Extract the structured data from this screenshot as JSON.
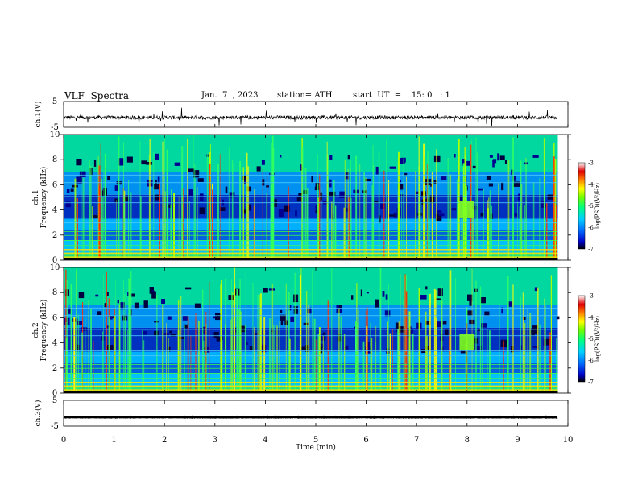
{
  "header": {
    "title": "VLF  Spectra",
    "date": "Jan.  7  , 2023",
    "station": "station= ATH",
    "start": "start  UT  =    15: 0   : 1"
  },
  "chart_data": [
    {
      "type": "line",
      "name": "ch1-waveform",
      "ylabel": "ch.1(V)",
      "yticks": [
        "5",
        "-5"
      ],
      "ylim": [
        -5,
        5
      ],
      "xlim": [
        0,
        10
      ],
      "x_extent": [
        0,
        9.8
      ],
      "baseline": -1.2,
      "color": "#000000"
    },
    {
      "type": "heatmap",
      "name": "ch1-spectrogram",
      "ylabel_channel": "ch.1",
      "ylabel": "Frequency  (kHz)",
      "yticks": [
        "0",
        "2",
        "4",
        "6",
        "8",
        "10"
      ],
      "ylim": [
        0,
        10
      ],
      "xlim": [
        0,
        10
      ],
      "x_extent": [
        0,
        9.8
      ],
      "colorbar": {
        "label": "log(PSD)(V²/Hz)",
        "ticks": [
          "-3",
          "-4",
          "-5",
          "-6",
          "-7"
        ],
        "range": [
          -7,
          -3
        ],
        "colors": [
          "#000000",
          "#0000c8",
          "#0070ff",
          "#00d0ff",
          "#00ff80",
          "#70ff00",
          "#ffff00",
          "#ff8000",
          "#e00000",
          "#ffffff"
        ]
      },
      "features": [
        "strong emissions below 2 kHz",
        "broadband impulsive noise (sferics) across 0–10 kHz",
        "emission near 4 kHz at ~8 min"
      ]
    },
    {
      "type": "heatmap",
      "name": "ch2-spectrogram",
      "ylabel_channel": "ch.2",
      "ylabel": "Frequency  (kHz)",
      "yticks": [
        "0",
        "2",
        "4",
        "6",
        "8",
        "10"
      ],
      "ylim": [
        0,
        10
      ],
      "xlim": [
        0,
        10
      ],
      "x_extent": [
        0,
        9.8
      ],
      "colorbar": {
        "label": "log(PSD)(V²/Hz)",
        "ticks": [
          "-3",
          "-4",
          "-5",
          "-6",
          "-7"
        ],
        "range": [
          -7,
          -3
        ]
      }
    },
    {
      "type": "line",
      "name": "ch3-waveform",
      "ylabel": "ch.3(V)",
      "yticks": [
        "5",
        "-5"
      ],
      "ylim": [
        -5,
        5
      ],
      "xlim": [
        0,
        10
      ],
      "x_extent": [
        0,
        9.8
      ],
      "baseline": -1.5,
      "color": "#000000"
    }
  ],
  "x_axis": {
    "label": "Time  (min)",
    "ticks": [
      "0",
      "1",
      "2",
      "3",
      "4",
      "5",
      "6",
      "7",
      "8",
      "9",
      "10"
    ]
  }
}
